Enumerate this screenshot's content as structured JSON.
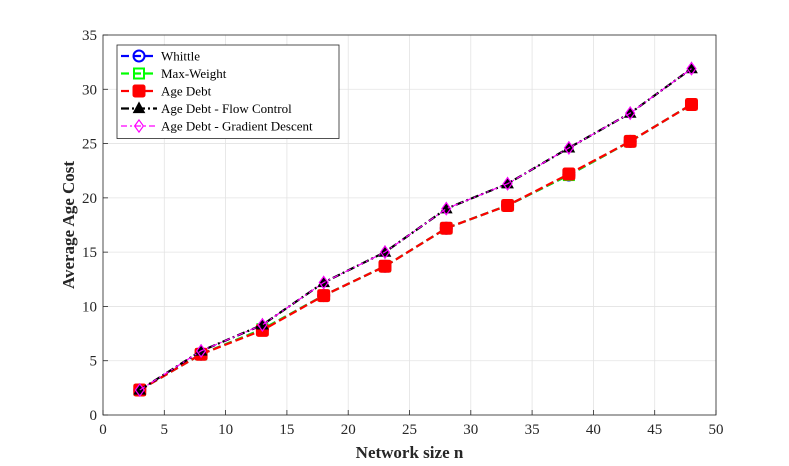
{
  "chart_data": {
    "type": "line",
    "title": "",
    "xlabel": "Network size n",
    "ylabel": "Average Age Cost",
    "xlim": [
      0,
      50
    ],
    "ylim": [
      0,
      35
    ],
    "xticks": [
      0,
      5,
      10,
      15,
      20,
      25,
      30,
      35,
      40,
      45,
      50
    ],
    "yticks": [
      0,
      5,
      10,
      15,
      20,
      25,
      30,
      35
    ],
    "grid": true,
    "legend_position": "top-left",
    "x": [
      3,
      8,
      13,
      18,
      23,
      28,
      33,
      38,
      43,
      48
    ],
    "series": [
      {
        "name": "Whittle",
        "color": "#0000ff",
        "dash": "dashed",
        "marker": "circle",
        "values": [
          2.3,
          5.6,
          7.9,
          11.0,
          13.7,
          17.2,
          19.3,
          22.1,
          25.2,
          28.6
        ]
      },
      {
        "name": "Max-Weight",
        "color": "#00ff00",
        "dash": "dashed",
        "marker": "square-open",
        "values": [
          2.3,
          5.6,
          7.9,
          11.0,
          13.7,
          17.2,
          19.3,
          22.1,
          25.2,
          28.6
        ]
      },
      {
        "name": "Age Debt",
        "color": "#ff0000",
        "dash": "dashed",
        "marker": "square-filled",
        "values": [
          2.3,
          5.6,
          7.8,
          11.0,
          13.7,
          17.2,
          19.3,
          22.2,
          25.2,
          28.6
        ]
      },
      {
        "name": "Age Debt - Flow Control",
        "color": "#000000",
        "dash": "dashdot",
        "marker": "triangle",
        "values": [
          2.3,
          5.9,
          8.3,
          12.2,
          15.0,
          19.0,
          21.3,
          24.6,
          27.8,
          31.9
        ]
      },
      {
        "name": "Age Debt - Gradient Descent",
        "color": "#ff00ff",
        "dash": "dashdot-thin",
        "marker": "diamond",
        "values": [
          2.3,
          5.9,
          8.3,
          12.2,
          15.0,
          19.0,
          21.3,
          24.6,
          27.8,
          31.9
        ]
      }
    ]
  }
}
